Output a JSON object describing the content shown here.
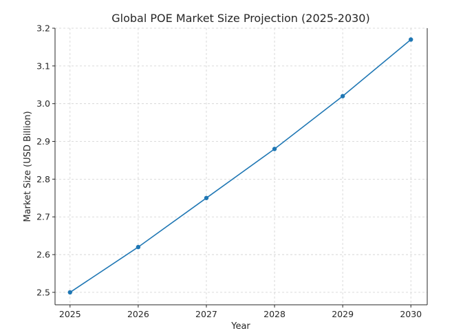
{
  "chart_data": {
    "type": "line",
    "title": "Global POE Market Size Projection (2025-2030)",
    "xlabel": "Year",
    "ylabel": "Market Size (USD Billion)",
    "x": [
      2025,
      2026,
      2027,
      2028,
      2029,
      2030
    ],
    "series": [
      {
        "values": [
          2.5,
          2.62,
          2.75,
          2.88,
          3.02,
          3.17
        ]
      }
    ],
    "xlim": [
      2024.78,
      2030.24
    ],
    "ylim": [
      2.467,
      3.2
    ],
    "yticks": [
      2.5,
      2.6,
      2.7,
      2.8,
      2.9,
      3.0,
      3.1,
      3.2
    ],
    "xticks": [
      2025,
      2026,
      2027,
      2028,
      2029,
      2030
    ],
    "grid": true,
    "line_color": "#1f77b4",
    "marker": "circle"
  }
}
